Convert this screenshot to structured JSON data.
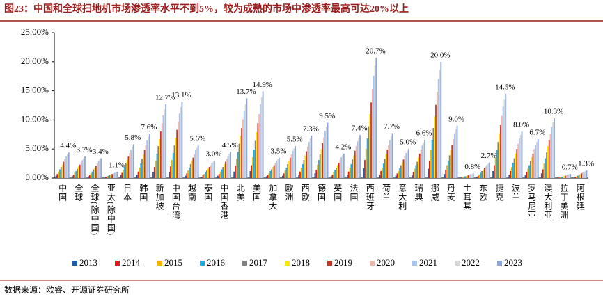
{
  "chart_data": {
    "type": "bar",
    "title": "图23：中国和全球扫地机市场渗透率水平不到5%，较为成熟的市场中渗透率最高可达20%以上",
    "source": "数据来源：欧睿、开源证券研究所",
    "categories": [
      "中国",
      "全球",
      "全球(除中国)",
      "亚太(除中国)",
      "日本",
      "韩国",
      "新加坡",
      "中国台湾",
      "越南",
      "泰国",
      "中国香港",
      "北美",
      "美国",
      "加拿大",
      "欧洲",
      "西欧",
      "德国",
      "英国",
      "法国",
      "西班牙",
      "荷兰",
      "意大利",
      "瑞典",
      "挪威",
      "丹麦",
      "土耳其",
      "东欧",
      "捷克",
      "波兰",
      "罗马尼亚",
      "澳大利亚",
      "拉丁美洲",
      "阿根廷"
    ],
    "ylim": [
      0,
      25
    ],
    "yticks": [
      {
        "value": 0,
        "label": "0.00%"
      },
      {
        "value": 5,
        "label": "5.00%"
      },
      {
        "value": 10,
        "label": "10.00%"
      },
      {
        "value": 15,
        "label": "15.00%"
      },
      {
        "value": 20,
        "label": "20.00%"
      },
      {
        "value": 25,
        "label": "25.00%"
      }
    ],
    "series": [
      {
        "name": "2013",
        "color": "#1f5fa8",
        "values": [
          0.4,
          0.3,
          0.3,
          0.1,
          0.5,
          0.6,
          1.0,
          1.0,
          0.4,
          0.2,
          0.4,
          1.1,
          1.2,
          0.3,
          0.4,
          0.6,
          0.8,
          0.3,
          0.6,
          1.7,
          0.6,
          0.4,
          0.5,
          1.6,
          0.7,
          0.1,
          0.2,
          1.2,
          0.6,
          0.5,
          0.8,
          0.1,
          0.1
        ]
      },
      {
        "name": "2014",
        "color": "#e31a1c",
        "values": [
          0.7,
          0.6,
          0.5,
          0.2,
          0.9,
          1.1,
          1.9,
          2.0,
          0.8,
          0.5,
          0.7,
          2.1,
          2.2,
          0.5,
          0.8,
          1.1,
          1.4,
          0.6,
          1.1,
          3.1,
          1.2,
          0.8,
          1.0,
          3.0,
          1.4,
          0.1,
          0.4,
          2.2,
          1.2,
          1.0,
          1.5,
          0.1,
          0.2
        ]
      },
      {
        "name": "2015",
        "color": "#f5b400",
        "values": [
          1.1,
          0.9,
          0.8,
          0.3,
          1.4,
          1.8,
          3.0,
          3.1,
          1.3,
          0.7,
          1.1,
          3.3,
          3.6,
          0.8,
          1.3,
          1.8,
          2.3,
          1.0,
          1.8,
          5.0,
          1.8,
          1.2,
          1.6,
          4.8,
          2.2,
          0.2,
          0.6,
          3.5,
          1.9,
          1.6,
          2.5,
          0.2,
          0.3
        ]
      },
      {
        "name": "2016",
        "color": "#17b0e8",
        "values": [
          1.5,
          1.2,
          1.1,
          0.4,
          1.9,
          2.5,
          4.2,
          4.3,
          1.8,
          1.0,
          1.5,
          4.5,
          4.9,
          1.2,
          1.8,
          2.4,
          3.1,
          1.4,
          2.4,
          6.8,
          2.5,
          1.7,
          2.2,
          6.6,
          3.0,
          0.3,
          0.9,
          4.8,
          2.6,
          2.2,
          3.4,
          0.2,
          0.4
        ]
      },
      {
        "name": "2017",
        "color": "#808080",
        "values": [
          1.9,
          1.6,
          1.5,
          0.5,
          2.5,
          3.3,
          5.5,
          5.6,
          2.4,
          1.3,
          1.9,
          5.9,
          6.4,
          1.5,
          2.4,
          3.1,
          4.1,
          1.8,
          3.2,
          8.9,
          3.3,
          2.2,
          2.8,
          8.6,
          3.9,
          0.3,
          1.2,
          6.2,
          3.4,
          2.9,
          4.4,
          0.3,
          0.6
        ]
      },
      {
        "name": "2018",
        "color": "#ffe600",
        "values": [
          2.3,
          2.0,
          1.8,
          0.6,
          3.1,
          4.0,
          6.7,
          6.9,
          3.0,
          1.6,
          2.4,
          7.3,
          7.9,
          1.9,
          2.9,
          3.9,
          5.0,
          2.2,
          3.9,
          11.0,
          4.1,
          2.7,
          3.5,
          10.6,
          4.8,
          0.4,
          1.4,
          7.7,
          4.2,
          3.6,
          5.5,
          0.4,
          0.7
        ]
      },
      {
        "name": "2019",
        "color": "#c0392b",
        "values": [
          2.8,
          2.3,
          2.1,
          0.7,
          3.7,
          4.8,
          8.0,
          8.3,
          3.5,
          1.9,
          2.8,
          8.6,
          9.4,
          2.2,
          3.5,
          4.6,
          6.0,
          2.6,
          4.7,
          13.0,
          4.9,
          3.2,
          4.2,
          12.6,
          5.7,
          0.5,
          1.7,
          9.1,
          5.0,
          4.2,
          6.5,
          0.4,
          0.8
        ]
      },
      {
        "name": "2020",
        "color": "#f2b8ae",
        "values": [
          3.3,
          2.7,
          2.5,
          0.8,
          4.3,
          5.6,
          9.4,
          9.7,
          4.1,
          2.2,
          3.3,
          10.1,
          11.0,
          2.6,
          4.1,
          5.4,
          7.0,
          3.1,
          5.5,
          15.3,
          5.7,
          3.7,
          4.9,
          14.8,
          6.7,
          0.6,
          2.0,
          10.7,
          5.9,
          5.0,
          7.6,
          0.5,
          1.0
        ]
      },
      {
        "name": "2021",
        "color": "#a9c4ec",
        "values": [
          3.7,
          3.1,
          2.9,
          0.9,
          4.9,
          6.5,
          10.8,
          11.1,
          4.8,
          2.6,
          3.8,
          11.6,
          12.7,
          3.0,
          4.7,
          6.2,
          8.1,
          3.6,
          6.3,
          17.6,
          6.5,
          4.3,
          5.6,
          17.0,
          7.7,
          0.7,
          2.3,
          12.3,
          6.8,
          5.7,
          8.8,
          0.6,
          1.1
        ]
      },
      {
        "name": "2022",
        "color": "#d6d6d6",
        "values": [
          4.1,
          3.4,
          3.2,
          1.0,
          5.4,
          7.1,
          11.8,
          12.2,
          5.2,
          2.8,
          4.2,
          12.7,
          13.9,
          3.3,
          5.1,
          6.8,
          8.8,
          3.9,
          6.9,
          19.3,
          7.2,
          4.7,
          6.1,
          18.6,
          8.4,
          0.7,
          2.5,
          13.5,
          7.4,
          6.2,
          9.6,
          0.7,
          1.2
        ]
      },
      {
        "name": "2023",
        "color": "#8ea6dc",
        "values": [
          4.4,
          3.7,
          3.4,
          1.1,
          5.8,
          7.6,
          12.7,
          13.1,
          5.6,
          3.0,
          4.5,
          13.7,
          14.9,
          3.5,
          5.5,
          7.3,
          9.5,
          4.2,
          7.4,
          20.7,
          7.7,
          5.0,
          6.6,
          20.0,
          9.0,
          0.8,
          2.7,
          14.5,
          8.0,
          6.7,
          10.3,
          0.7,
          1.3
        ],
        "value_labels": [
          "4.4%",
          "3.7%",
          "3.4%",
          "1.1%",
          "5.8%",
          "7.6%",
          "12.7%",
          "13.1%",
          "5.6%",
          "3.0%",
          "4.5%",
          "13.7%",
          "14.9%",
          "3.5%",
          "5.5%",
          "7.3%",
          "9.5%",
          "4.2%",
          "7.4%",
          "20.7%",
          "7.7%",
          "5.0%",
          "6.6%",
          "20.0%",
          "9.0%",
          "0.8%",
          "2.7%",
          "14.5%",
          "8.0%",
          "6.7%",
          "10.3%",
          "0.7%",
          "1.3%"
        ]
      }
    ]
  }
}
